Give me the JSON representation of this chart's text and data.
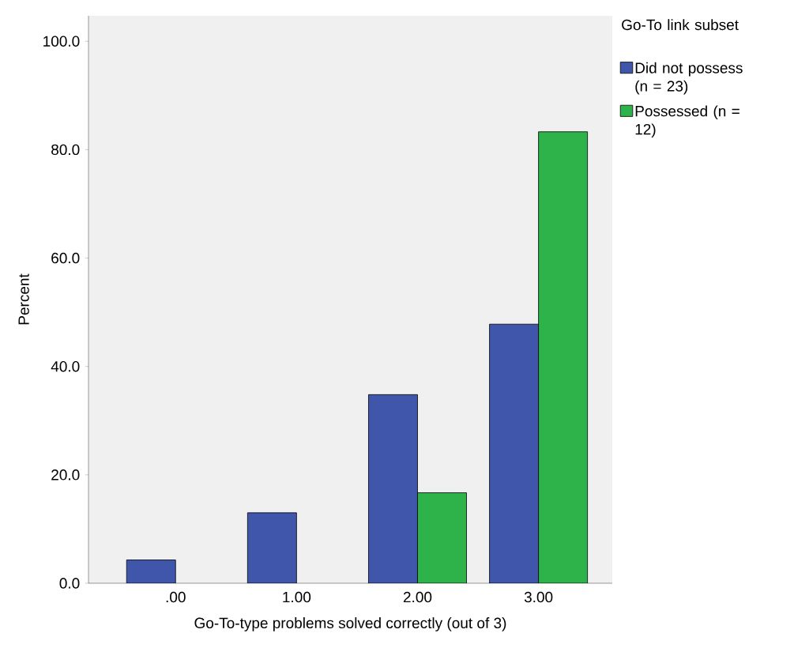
{
  "chart_data": {
    "type": "bar",
    "xlabel": "Go-To-type problems solved correctly (out of 3)",
    "ylabel": "Percent",
    "legend_title": "Go-To link subset",
    "categories": [
      ".00",
      "1.00",
      "2.00",
      "3.00"
    ],
    "series": [
      {
        "name": "Did not possess (n = 23)",
        "color": "#3f56ab",
        "values": [
          4.3,
          13.0,
          34.8,
          47.8
        ]
      },
      {
        "name": "Possessed (n = 12)",
        "color": "#2db34a",
        "values": [
          null,
          null,
          16.7,
          83.3
        ]
      }
    ],
    "ylim": [
      0,
      104.7
    ],
    "yticks": [
      {
        "value": 0,
        "label": "0.0"
      },
      {
        "value": 20,
        "label": "20.0"
      },
      {
        "value": 40,
        "label": "40.0"
      },
      {
        "value": 60,
        "label": "60.0"
      },
      {
        "value": 80,
        "label": "80.0"
      },
      {
        "value": 100,
        "label": "100.0"
      }
    ],
    "grid": false,
    "legend": "top right"
  }
}
